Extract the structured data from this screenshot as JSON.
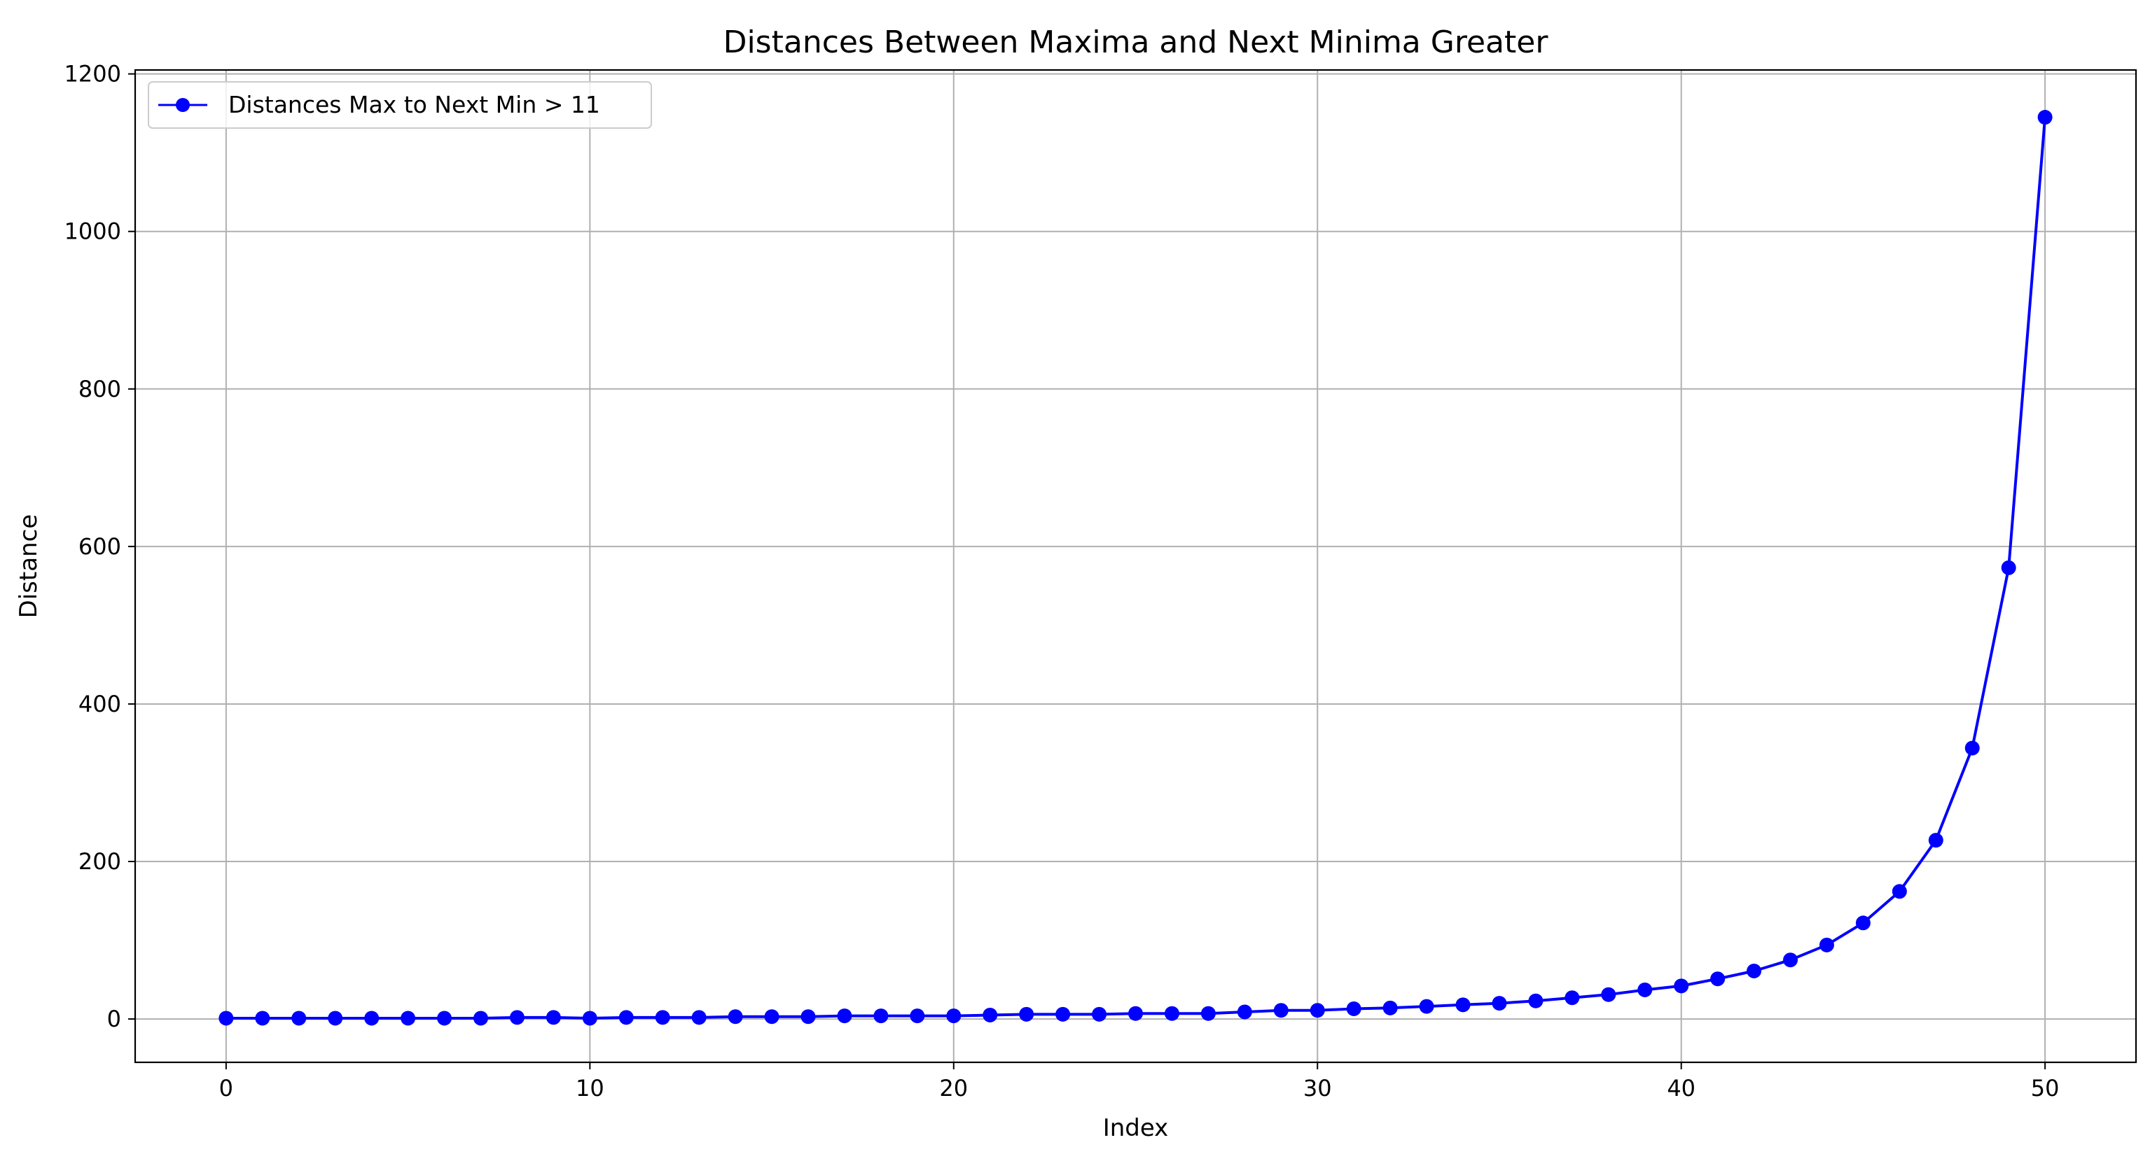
{
  "chart_data": {
    "type": "line",
    "title": "Distances Between Maxima and Next Minima Greater",
    "xlabel": "Index",
    "ylabel": "Distance",
    "xlim": [
      -2.5,
      52.5
    ],
    "ylim": [
      -55,
      1205
    ],
    "xticks": [
      0,
      10,
      20,
      30,
      40,
      50
    ],
    "yticks": [
      0,
      200,
      400,
      600,
      800,
      1000,
      1200
    ],
    "grid": true,
    "legend_position": "top-left",
    "series": [
      {
        "name": "Distances Max to Next Min > 11",
        "color": "#0000ff",
        "marker": "circle",
        "x": [
          0,
          1,
          2,
          3,
          4,
          5,
          6,
          7,
          8,
          9,
          10,
          11,
          12,
          13,
          14,
          15,
          16,
          17,
          18,
          19,
          20,
          21,
          22,
          23,
          24,
          25,
          26,
          27,
          28,
          29,
          30,
          31,
          32,
          33,
          34,
          35,
          36,
          37,
          38,
          39,
          40,
          41,
          42,
          43,
          44,
          45,
          46,
          47,
          48,
          49,
          50
        ],
        "y": [
          1,
          1,
          1,
          1,
          1,
          1,
          1,
          1,
          2,
          2,
          1,
          2,
          2,
          2,
          3,
          3,
          3,
          4,
          4,
          4,
          4,
          5,
          6,
          6,
          6,
          7,
          7,
          7,
          9,
          11,
          11,
          13,
          14,
          16,
          18,
          20,
          23,
          27,
          31,
          37,
          42,
          51,
          61,
          75,
          94,
          122,
          162,
          227,
          344,
          573,
          1145
        ]
      }
    ]
  }
}
